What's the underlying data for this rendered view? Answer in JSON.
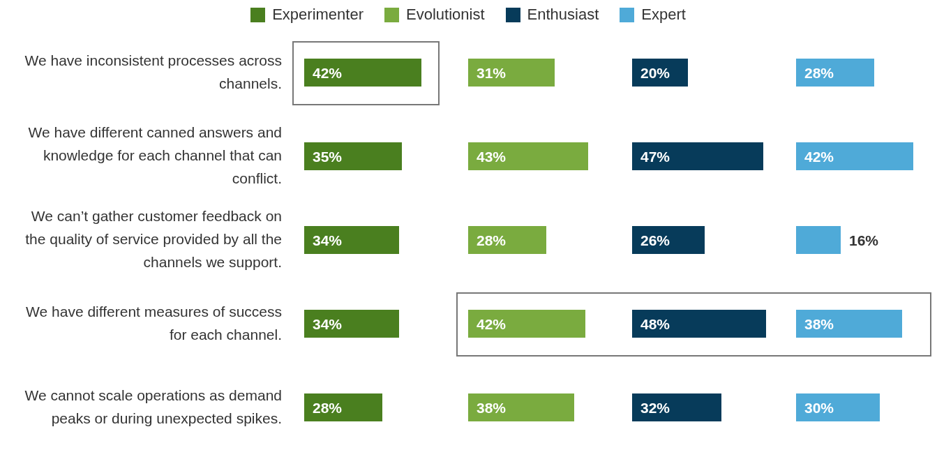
{
  "chart_data": [
    {
      "type": "bar",
      "orientation": "horizontal",
      "legend": "top",
      "categories": [
        "We have inconsistent processes across channels.",
        "We have different canned answers and knowledge for each channel that can conflict.",
        "We can’t gather customer feedback on the quality of service provided by all the channels we support.",
        "We have different measures of success for each channel.",
        "We cannot scale operations as demand peaks or during unexpected spikes."
      ],
      "series": [
        {
          "name": "Experimenter",
          "color": "#4a7f1f",
          "values": [
            42,
            35,
            34,
            34,
            28
          ],
          "value_labels": [
            "42%",
            "35%",
            "34%",
            "34%",
            "28%"
          ]
        }
      ]
    },
    {
      "type": "bar",
      "orientation": "horizontal",
      "legend": "top",
      "tick_labels": false,
      "categories": [
        null,
        null,
        null,
        null,
        null
      ],
      "series": [
        {
          "name": "Evolutionist",
          "color": "#7aab3f",
          "values": [
            31,
            43,
            28,
            42,
            38
          ],
          "value_labels": [
            "31%",
            "43%",
            "28%",
            "42%",
            "38%"
          ]
        }
      ]
    },
    {
      "type": "bar",
      "orientation": "horizontal",
      "legend": "top",
      "tick_labels": false,
      "categories": [
        null,
        null,
        null,
        null,
        null
      ],
      "series": [
        {
          "name": "Enthusiast",
          "color": "#073b5a",
          "values": [
            20,
            47,
            26,
            48,
            32
          ],
          "value_labels": [
            "20%",
            "47%",
            "26%",
            "48%",
            "32%"
          ]
        }
      ]
    },
    {
      "type": "bar",
      "orientation": "horizontal",
      "legend": "top",
      "tick_labels": false,
      "categories": [
        null,
        null,
        null,
        null,
        null
      ],
      "series": [
        {
          "name": "Expert",
          "color": "#4faad8",
          "values": [
            28,
            42,
            16,
            38,
            30
          ],
          "value_labels": [
            "28%",
            "42%",
            "16%",
            "38%",
            "30%"
          ]
        }
      ]
    }
  ]
}
